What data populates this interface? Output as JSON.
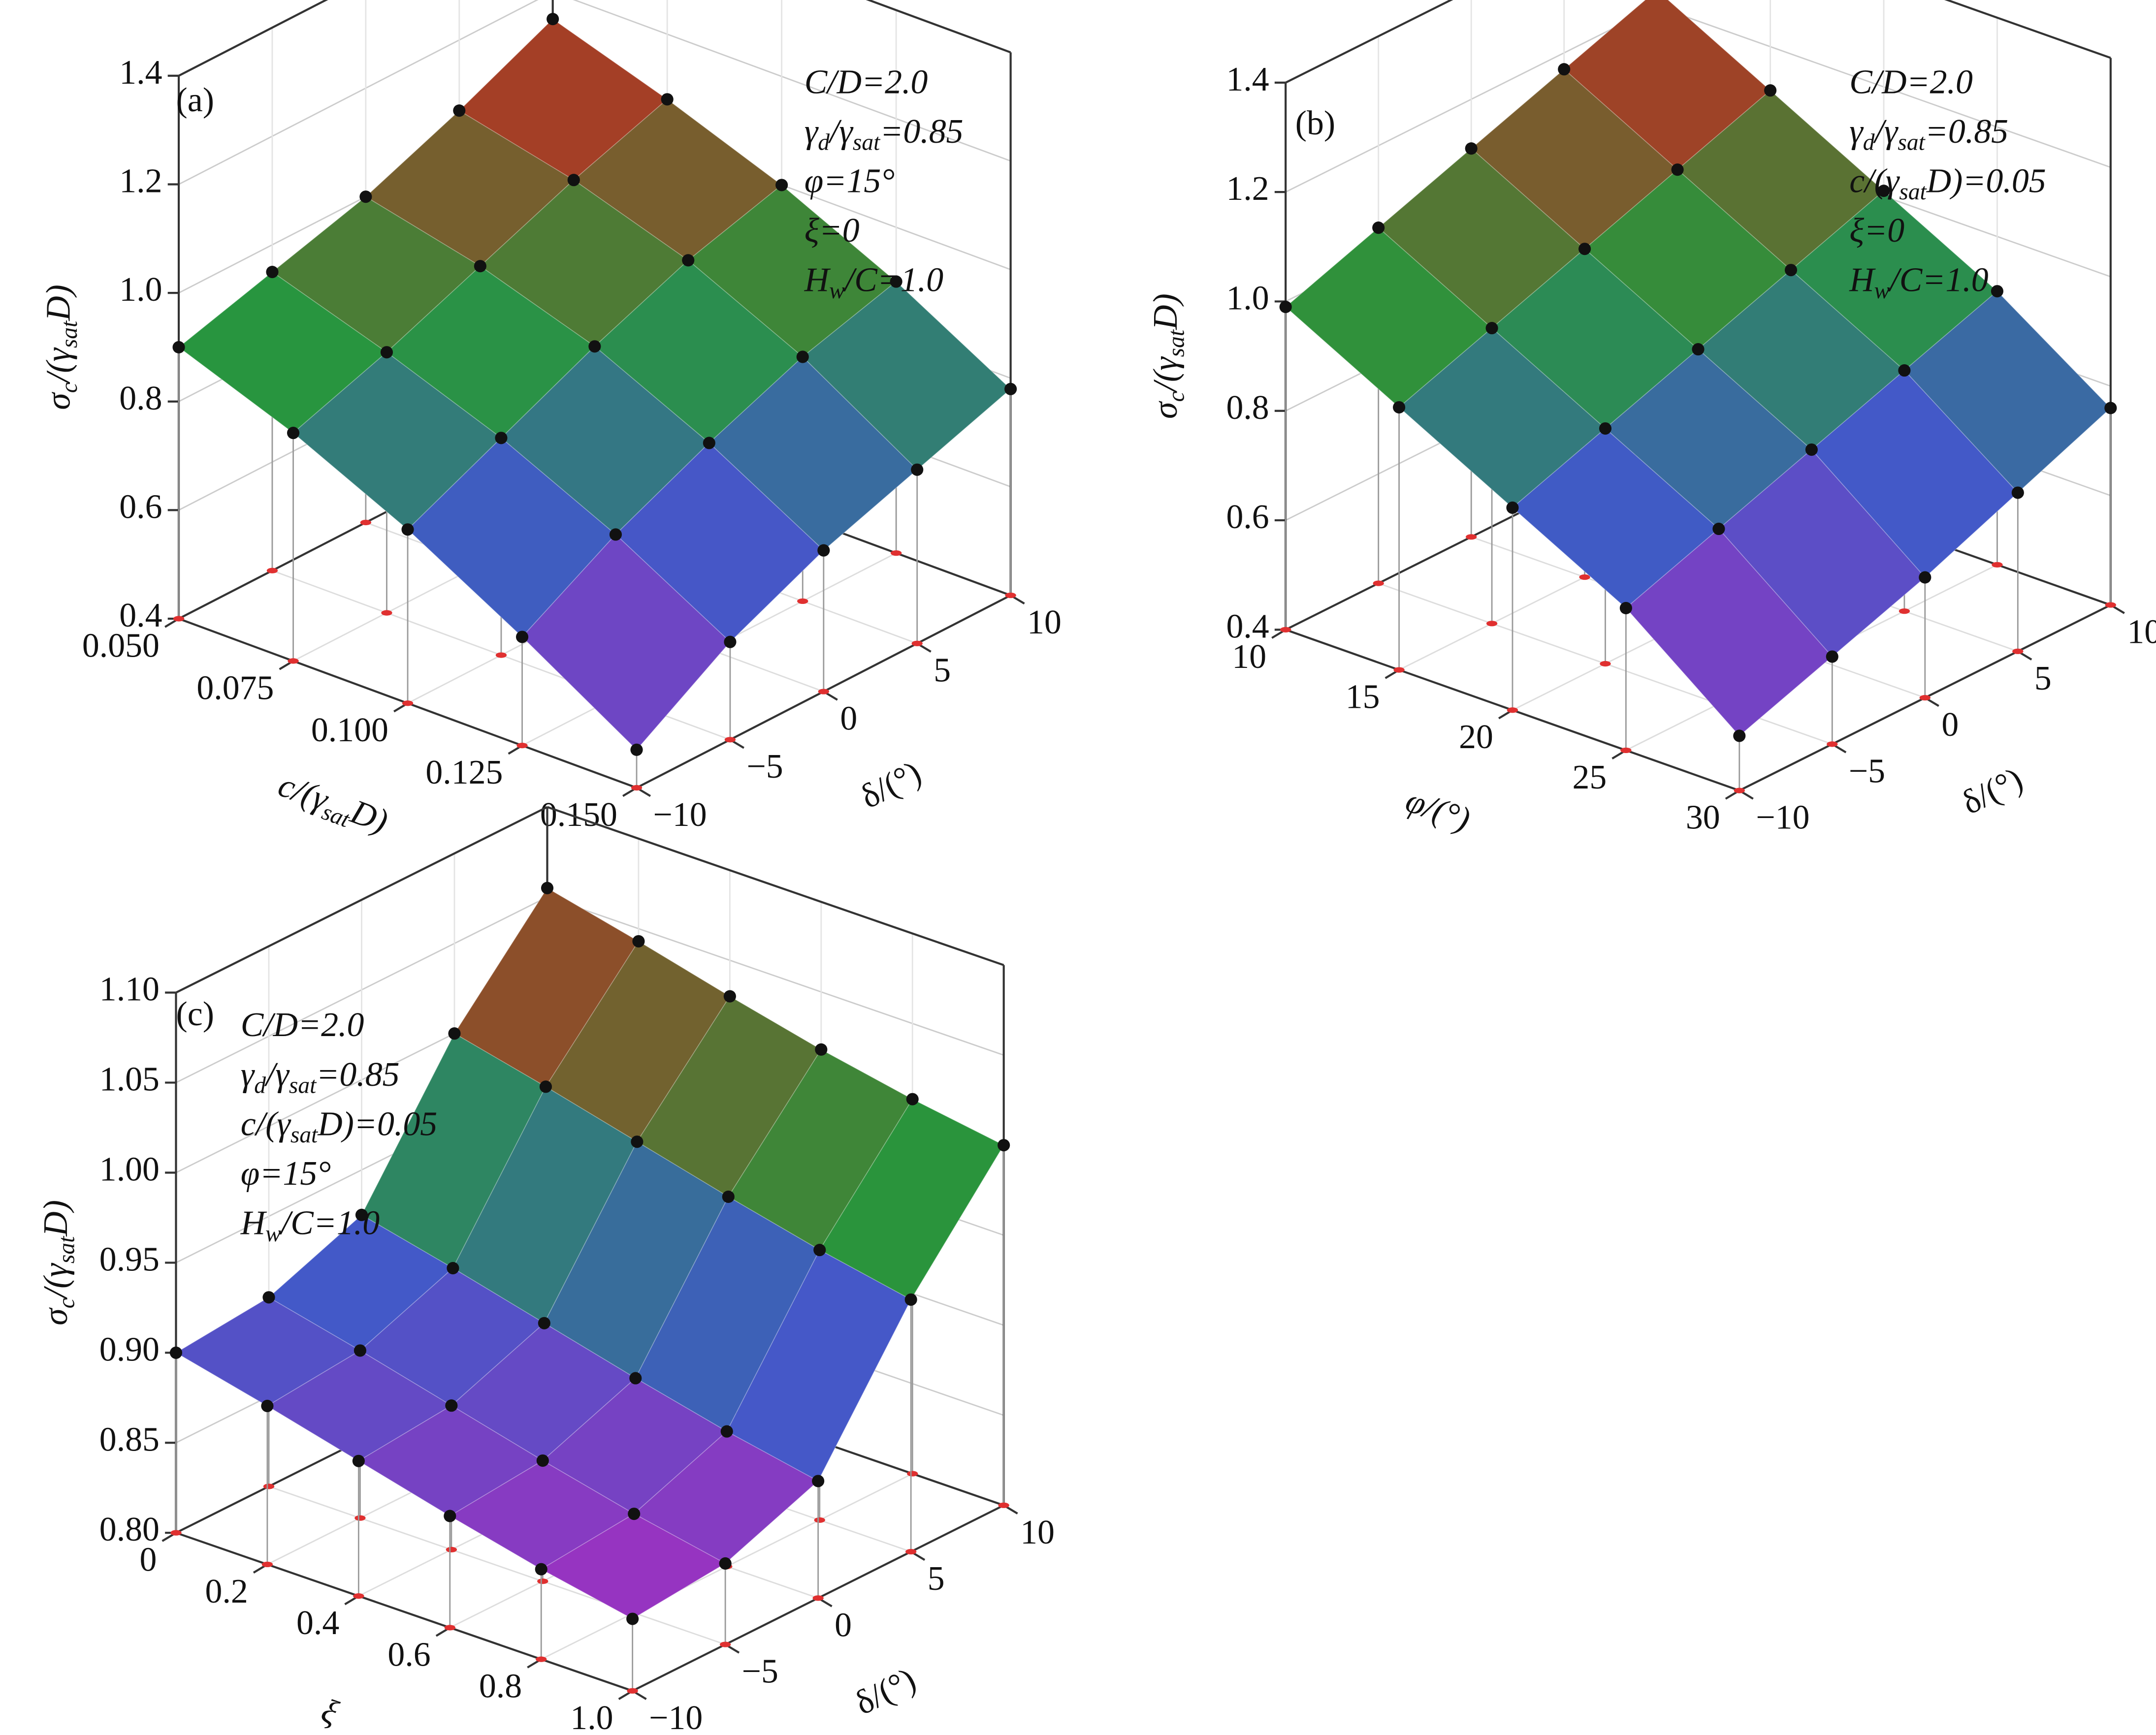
{
  "chart_data": [
    {
      "type": "surface3d",
      "title": "(a)",
      "annotations": [
        [
          "C/D=2.0"
        ],
        [
          "γ",
          "d",
          "/γ",
          "sat",
          "=0.85"
        ],
        [
          "φ=15°"
        ],
        [
          "ξ=0"
        ],
        [
          "H",
          "w",
          "/C=1.0"
        ]
      ],
      "xlabel": [
        "c/(γ",
        "sat",
        "D)"
      ],
      "ylabel": [
        "δ/(°)"
      ],
      "zlabel": [
        "σ",
        "c",
        "/(γ",
        "sat",
        "D)"
      ],
      "x": [
        0.05,
        0.075,
        0.1,
        0.125,
        0.15
      ],
      "y": [
        -10,
        -5,
        0,
        5,
        10
      ],
      "values": [
        [
          0.9,
          0.95,
          1.0,
          1.07,
          1.15
        ],
        [
          0.82,
          0.88,
          0.95,
          1.02,
          1.08
        ],
        [
          0.72,
          0.8,
          0.88,
          0.95,
          1.0
        ],
        [
          0.6,
          0.7,
          0.78,
          0.85,
          0.9
        ],
        [
          0.47,
          0.58,
          0.66,
          0.72,
          0.78
        ]
      ],
      "xlim": [
        0.05,
        0.15
      ],
      "ylim": [
        -10,
        10
      ],
      "zlim": [
        0.4,
        1.4
      ],
      "xticks": [
        {
          "value": 0.05,
          "label": "0.050"
        },
        {
          "value": 0.075,
          "label": "0.075"
        },
        {
          "value": 0.1,
          "label": "0.100"
        },
        {
          "value": 0.125,
          "label": "0.125"
        },
        {
          "value": 0.15,
          "label": "0.150"
        }
      ],
      "yticks": [
        {
          "value": -10,
          "label": "−10"
        },
        {
          "value": -5,
          "label": "−5"
        },
        0,
        5,
        10
      ],
      "zticks": [
        0.4,
        0.6,
        0.8,
        {
          "value": 1,
          "label": "1.0"
        },
        1.2,
        1.4
      ]
    },
    {
      "type": "surface3d",
      "title": "(b)",
      "annotations": [
        [
          "C/D=2.0"
        ],
        [
          "γ",
          "d",
          "/γ",
          "sat",
          "=0.85"
        ],
        [
          "c/(γ",
          "sat",
          "D)=0.05"
        ],
        [
          "ξ=0"
        ],
        [
          "H",
          "w",
          "/C=1.0"
        ]
      ],
      "xlabel": [
        "φ/(°)"
      ],
      "ylabel": [
        "δ/(°)"
      ],
      "zlabel": [
        "σ",
        "c",
        "/(γ",
        "sat",
        "D)"
      ],
      "x": [
        10,
        15,
        20,
        25,
        30
      ],
      "y": [
        -10,
        -5,
        0,
        5,
        10
      ],
      "values": [
        [
          0.99,
          1.05,
          1.11,
          1.17,
          1.23
        ],
        [
          0.88,
          0.94,
          1.0,
          1.06,
          1.12
        ],
        [
          0.77,
          0.83,
          0.89,
          0.95,
          1.01
        ],
        [
          0.66,
          0.72,
          0.78,
          0.84,
          0.9
        ],
        [
          0.5,
          0.56,
          0.62,
          0.69,
          0.76
        ]
      ],
      "xlim": [
        10,
        30
      ],
      "ylim": [
        -10,
        10
      ],
      "zlim": [
        0.4,
        1.4
      ],
      "xticks": [
        10,
        15,
        20,
        25,
        30
      ],
      "yticks": [
        {
          "value": -10,
          "label": "−10"
        },
        {
          "value": -5,
          "label": "−5"
        },
        0,
        5,
        10
      ],
      "zticks": [
        0.4,
        0.6,
        0.8,
        {
          "value": 1,
          "label": "1.0"
        },
        1.2,
        1.4
      ]
    },
    {
      "type": "surface3d",
      "title": "(c)",
      "annotations": [
        [
          "C/D=2.0"
        ],
        [
          "γ",
          "d",
          "/γ",
          "sat",
          "=0.85"
        ],
        [
          "c/(γ",
          "sat",
          "D)=0.05"
        ],
        [
          "φ=15°"
        ],
        [
          "H",
          "w",
          "/C=1.0"
        ]
      ],
      "xlabel": [
        "ξ"
      ],
      "ylabel": [
        "δ/(°)"
      ],
      "zlabel": [
        "σ",
        "c",
        "/(γ",
        "sat",
        "D)"
      ],
      "x": [
        0,
        0.2,
        0.4,
        0.6,
        0.8,
        1
      ],
      "y": [
        -10,
        -5,
        0,
        5,
        10
      ],
      "values": [
        [
          0.9,
          0.905,
          0.925,
          1.0,
          1.055
        ],
        [
          0.888,
          0.893,
          0.913,
          0.988,
          1.043
        ],
        [
          0.875,
          0.88,
          0.9,
          0.975,
          1.03
        ],
        [
          0.862,
          0.867,
          0.887,
          0.962,
          1.018
        ],
        [
          0.85,
          0.855,
          0.875,
          0.95,
          1.008
        ],
        [
          0.84,
          0.845,
          0.865,
          0.94,
          1.0
        ]
      ],
      "xlim": [
        0,
        1
      ],
      "ylim": [
        -10,
        10
      ],
      "zlim": [
        0.8,
        1.1
      ],
      "xticks": [
        0,
        0.2,
        0.4,
        0.6,
        0.8,
        {
          "value": 1,
          "label": "1.0"
        }
      ],
      "yticks": [
        {
          "value": -10,
          "label": "−10"
        },
        {
          "value": -5,
          "label": "−5"
        },
        0,
        5,
        10
      ],
      "zticks": [
        {
          "value": 0.8,
          "label": "0.80"
        },
        {
          "value": 0.85,
          "label": "0.85"
        },
        {
          "value": 0.9,
          "label": "0.90"
        },
        {
          "value": 0.95,
          "label": "0.95"
        },
        {
          "value": 1,
          "label": "1.00"
        },
        {
          "value": 1.05,
          "label": "1.05"
        },
        {
          "value": 1.1,
          "label": "1.10"
        }
      ]
    }
  ]
}
